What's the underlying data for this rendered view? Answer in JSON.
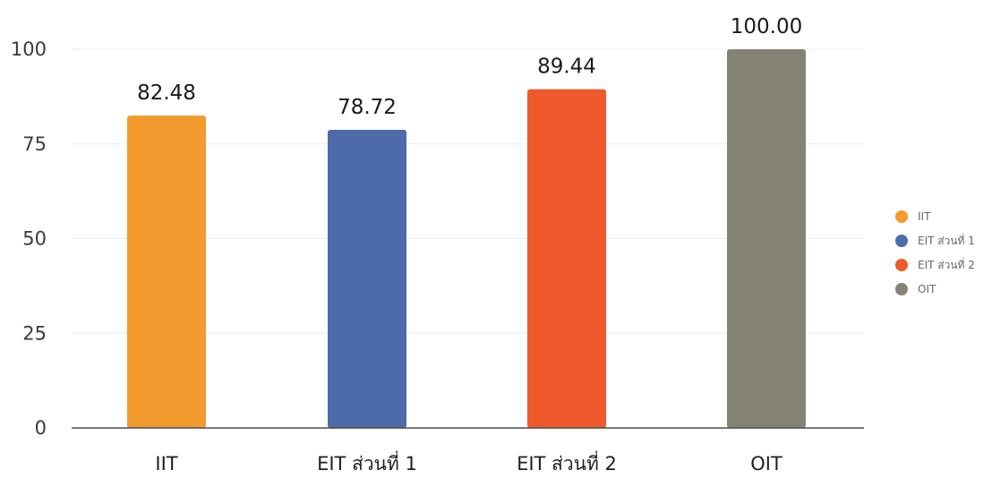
{
  "chart_data": {
    "type": "bar",
    "categories": [
      "IIT",
      "EIT ส่วนที่ 1",
      "EIT ส่วนที่ 2",
      "OIT"
    ],
    "values": [
      82.48,
      78.72,
      89.44,
      100.0
    ],
    "value_labels": [
      "82.48",
      "78.72",
      "89.44",
      "100.00"
    ],
    "colors": [
      "#F29A2E",
      "#4D6BA8",
      "#EE5A2C",
      "#858374"
    ],
    "ylim": [
      0,
      100
    ],
    "yticks": [
      0,
      25,
      50,
      75,
      100
    ],
    "grid": true,
    "legend_position": "right",
    "legend": [
      "IIT",
      "EIT ส่วนที่ 1",
      "EIT ส่วนที่ 2",
      "OIT"
    ],
    "title": "",
    "xlabel": "",
    "ylabel": ""
  }
}
